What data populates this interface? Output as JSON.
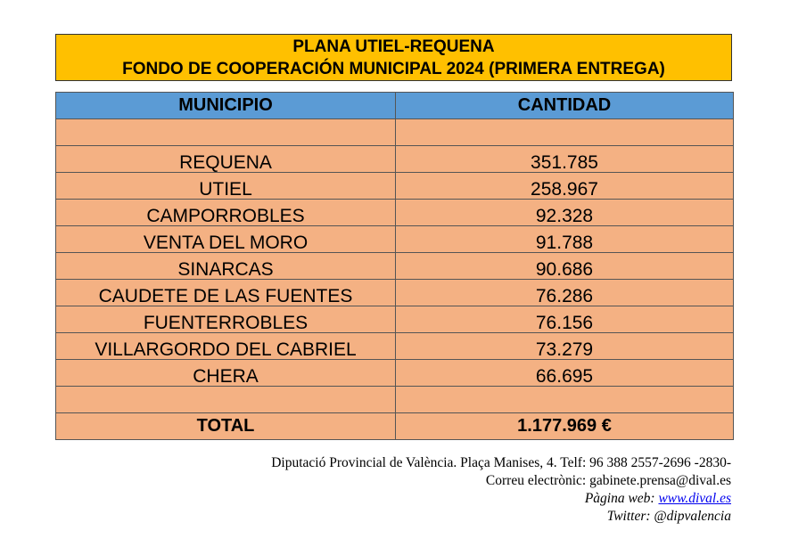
{
  "header": {
    "title_line1": "PLANA UTIEL-REQUENA",
    "title_line2": "FONDO DE COOPERACIÓN MUNICIPAL 2024 (PRIMERA ENTREGA)"
  },
  "table": {
    "columns": [
      "MUNICIPIO",
      "CANTIDAD"
    ],
    "rows": [
      [
        "REQUENA",
        "351.785"
      ],
      [
        "UTIEL",
        "258.967"
      ],
      [
        "CAMPORROBLES",
        "92.328"
      ],
      [
        "VENTA DEL MORO",
        "91.788"
      ],
      [
        "SINARCAS",
        "90.686"
      ],
      [
        "CAUDETE DE LAS FUENTES",
        "76.286"
      ],
      [
        "FUENTERROBLES",
        "76.156"
      ],
      [
        "VILLARGORDO DEL CABRIEL",
        "73.279"
      ],
      [
        "CHERA",
        "66.695"
      ]
    ],
    "total": [
      "TOTAL",
      "1.177.969 €"
    ]
  },
  "footer": {
    "address": "Diputació Provincial de València. Plaça Manises, 4. Telf: 96 388 2557-2696 -2830-",
    "email": "Correu electrònic: gabinete.prensa@dival.es",
    "web_label": "Pàgina web:",
    "web_link": "www.dival.es",
    "twitter": "Twitter: @dipvalencia"
  }
}
